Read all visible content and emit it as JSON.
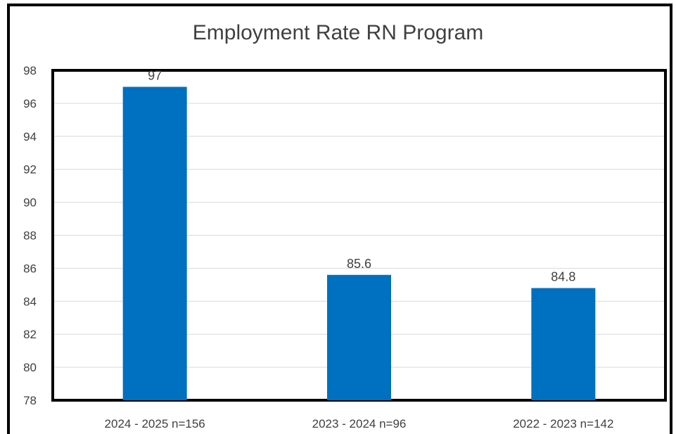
{
  "chart_data": {
    "type": "bar",
    "title": "Employment Rate RN Program",
    "categories": [
      "2024 - 2025 n=156",
      "2023 - 2024 n=96",
      "2022 - 2023 n=142"
    ],
    "values": [
      97,
      85.6,
      84.8
    ],
    "data_labels": [
      "97",
      "85.6",
      "84.8"
    ],
    "ylim": [
      78,
      98
    ],
    "yticks": [
      "78",
      "80",
      "82",
      "84",
      "86",
      "88",
      "90",
      "92",
      "94",
      "96",
      "98"
    ],
    "xlabel": "",
    "ylabel": "",
    "grid": true,
    "legend": "none",
    "bar_color": "#0070C0"
  }
}
